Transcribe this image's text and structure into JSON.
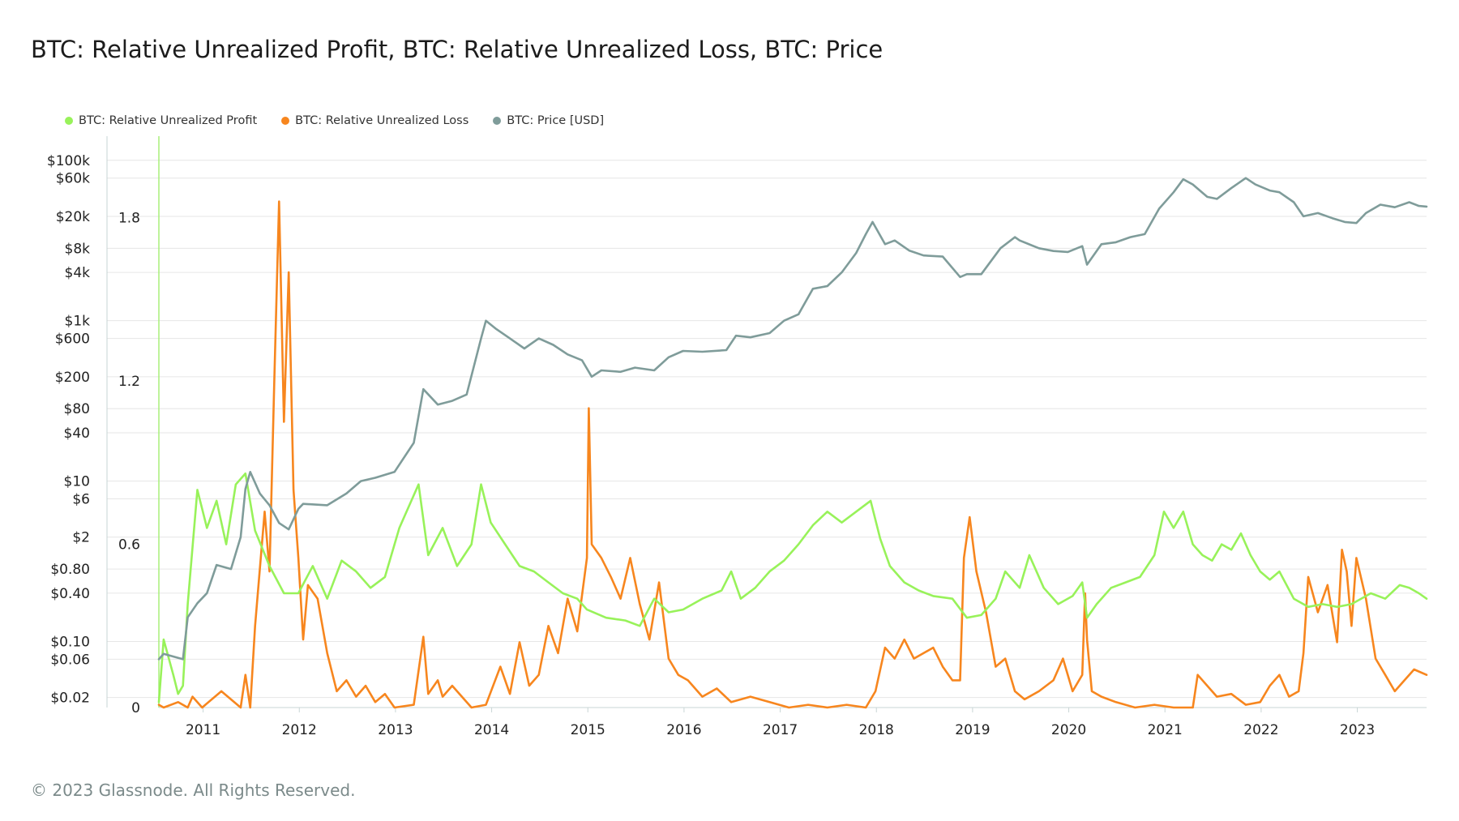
{
  "title": "BTC: Relative Unrealized Profit, BTC: Relative Unrealized Loss, BTC: Price",
  "footer": "© 2023 Glassnode. All Rights Reserved.",
  "colors": {
    "profit": "#98f25a",
    "loss": "#f7861e",
    "price": "#7f9c9a",
    "grid": "#e6e6e6",
    "axis": "#9aa"
  },
  "legend": [
    {
      "label": "BTC: Relative Unrealized Profit",
      "color": "#98f25a"
    },
    {
      "label": "BTC: Relative Unrealized Loss",
      "color": "#f7861e"
    },
    {
      "label": "BTC: Price [USD]",
      "color": "#7f9c9a"
    }
  ],
  "chart_data": {
    "type": "line",
    "title": "BTC: Relative Unrealized Profit, BTC: Relative Unrealized Loss, BTC: Price",
    "x_range": [
      2010.55,
      2023.73
    ],
    "x_ticks": [
      "2011",
      "2012",
      "2013",
      "2014",
      "2015",
      "2016",
      "2017",
      "2018",
      "2019",
      "2020",
      "2021",
      "2022",
      "2023"
    ],
    "y_left_scale": "log",
    "y_left_range": [
      0.015,
      200000
    ],
    "y_left_ticks": [
      "$0.02",
      "$0.06",
      "$0.10",
      "$0.40",
      "$0.80",
      "$2",
      "$6",
      "$10",
      "$40",
      "$80",
      "$200",
      "$600",
      "$1k",
      "$4k",
      "$8k",
      "$20k",
      "$60k",
      "$100k"
    ],
    "y_right_range": [
      0,
      2.1
    ],
    "y_right_ticks": [
      "0",
      "0.6",
      "1.2",
      "1.8"
    ],
    "series": [
      {
        "name": "BTC: Relative Unrealized Profit",
        "axis": "right",
        "color": "#98f25a",
        "x": [
          2010.55,
          2010.6,
          2010.7,
          2010.75,
          2010.8,
          2010.85,
          2010.95,
          2011.05,
          2011.15,
          2011.25,
          2011.35,
          2011.45,
          2011.55,
          2011.7,
          2011.85,
          2012.0,
          2012.15,
          2012.3,
          2012.45,
          2012.6,
          2012.75,
          2012.9,
          2013.05,
          2013.15,
          2013.25,
          2013.35,
          2013.5,
          2013.65,
          2013.8,
          2013.9,
          2014.0,
          2014.15,
          2014.3,
          2014.45,
          2014.6,
          2014.75,
          2014.9,
          2015.0,
          2015.2,
          2015.4,
          2015.55,
          2015.7,
          2015.85,
          2016.0,
          2016.2,
          2016.4,
          2016.5,
          2016.6,
          2016.75,
          2016.9,
          2017.05,
          2017.2,
          2017.35,
          2017.5,
          2017.65,
          2017.8,
          2017.95,
          2018.05,
          2018.15,
          2018.3,
          2018.45,
          2018.6,
          2018.8,
          2018.95,
          2019.1,
          2019.25,
          2019.35,
          2019.5,
          2019.6,
          2019.75,
          2019.9,
          2020.05,
          2020.15,
          2020.2,
          2020.3,
          2020.45,
          2020.6,
          2020.75,
          2020.9,
          2021.0,
          2021.1,
          2021.2,
          2021.3,
          2021.4,
          2021.5,
          2021.6,
          2021.7,
          2021.8,
          2021.9,
          2022.0,
          2022.1,
          2022.2,
          2022.35,
          2022.5,
          2022.65,
          2022.8,
          2022.95,
          2023.05,
          2023.15,
          2023.3,
          2023.45,
          2023.55,
          2023.65,
          2023.73
        ],
        "y": [
          0.02,
          0.25,
          0.12,
          0.05,
          0.08,
          0.38,
          0.8,
          0.66,
          0.76,
          0.6,
          0.82,
          0.86,
          0.65,
          0.52,
          0.42,
          0.42,
          0.52,
          0.4,
          0.54,
          0.5,
          0.44,
          0.48,
          0.66,
          0.74,
          0.82,
          0.56,
          0.66,
          0.52,
          0.6,
          0.82,
          0.68,
          0.6,
          0.52,
          0.5,
          0.46,
          0.42,
          0.4,
          0.36,
          0.33,
          0.32,
          0.3,
          0.4,
          0.35,
          0.36,
          0.4,
          0.43,
          0.5,
          0.4,
          0.44,
          0.5,
          0.54,
          0.6,
          0.67,
          0.72,
          0.68,
          0.72,
          0.76,
          0.62,
          0.52,
          0.46,
          0.43,
          0.41,
          0.4,
          0.33,
          0.34,
          0.4,
          0.5,
          0.44,
          0.56,
          0.44,
          0.38,
          0.41,
          0.46,
          0.33,
          0.38,
          0.44,
          0.46,
          0.48,
          0.56,
          0.72,
          0.66,
          0.72,
          0.6,
          0.56,
          0.54,
          0.6,
          0.58,
          0.64,
          0.56,
          0.5,
          0.47,
          0.5,
          0.4,
          0.37,
          0.38,
          0.37,
          0.38,
          0.4,
          0.42,
          0.4,
          0.45,
          0.44,
          0.42,
          0.4
        ]
      },
      {
        "name": "BTC: Relative Unrealized Loss",
        "axis": "right",
        "color": "#f7861e",
        "x": [
          2010.55,
          2010.6,
          2010.75,
          2010.85,
          2010.9,
          2011.0,
          2011.2,
          2011.4,
          2011.45,
          2011.5,
          2011.55,
          2011.65,
          2011.7,
          2011.75,
          2011.8,
          2011.85,
          2011.9,
          2011.95,
          2012.0,
          2012.05,
          2012.1,
          2012.2,
          2012.3,
          2012.4,
          2012.5,
          2012.6,
          2012.7,
          2012.8,
          2012.9,
          2013.0,
          2013.2,
          2013.3,
          2013.35,
          2013.45,
          2013.5,
          2013.6,
          2013.8,
          2013.95,
          2014.1,
          2014.2,
          2014.3,
          2014.4,
          2014.5,
          2014.6,
          2014.7,
          2014.8,
          2014.9,
          2015.0,
          2015.02,
          2015.05,
          2015.15,
          2015.25,
          2015.35,
          2015.45,
          2015.55,
          2015.65,
          2015.75,
          2015.85,
          2015.95,
          2016.05,
          2016.2,
          2016.35,
          2016.5,
          2016.7,
          2016.9,
          2017.1,
          2017.3,
          2017.5,
          2017.7,
          2017.9,
          2018.0,
          2018.1,
          2018.2,
          2018.3,
          2018.4,
          2018.5,
          2018.6,
          2018.7,
          2018.8,
          2018.88,
          2018.92,
          2018.98,
          2019.05,
          2019.15,
          2019.25,
          2019.35,
          2019.45,
          2019.55,
          2019.7,
          2019.85,
          2019.95,
          2020.05,
          2020.15,
          2020.18,
          2020.2,
          2020.25,
          2020.35,
          2020.5,
          2020.7,
          2020.9,
          2021.1,
          2021.3,
          2021.35,
          2021.45,
          2021.55,
          2021.7,
          2021.85,
          2022.0,
          2022.1,
          2022.2,
          2022.3,
          2022.4,
          2022.45,
          2022.5,
          2022.6,
          2022.7,
          2022.8,
          2022.85,
          2022.9,
          2022.95,
          2023.0,
          2023.1,
          2023.2,
          2023.3,
          2023.4,
          2023.5,
          2023.6,
          2023.73
        ],
        "y": [
          0.01,
          0.0,
          0.02,
          0.0,
          0.04,
          0.0,
          0.06,
          0.0,
          0.12,
          0.0,
          0.3,
          0.72,
          0.5,
          1.2,
          1.86,
          1.05,
          1.6,
          0.8,
          0.55,
          0.25,
          0.45,
          0.4,
          0.2,
          0.06,
          0.1,
          0.04,
          0.08,
          0.02,
          0.05,
          0.0,
          0.01,
          0.26,
          0.05,
          0.1,
          0.04,
          0.08,
          0.0,
          0.01,
          0.15,
          0.05,
          0.24,
          0.08,
          0.12,
          0.3,
          0.2,
          0.4,
          0.28,
          0.55,
          1.1,
          0.6,
          0.55,
          0.48,
          0.4,
          0.55,
          0.38,
          0.25,
          0.46,
          0.18,
          0.12,
          0.1,
          0.04,
          0.07,
          0.02,
          0.04,
          0.02,
          0.0,
          0.01,
          0.0,
          0.01,
          0.0,
          0.06,
          0.22,
          0.18,
          0.25,
          0.18,
          0.2,
          0.22,
          0.15,
          0.1,
          0.1,
          0.55,
          0.7,
          0.5,
          0.35,
          0.15,
          0.18,
          0.06,
          0.03,
          0.06,
          0.1,
          0.18,
          0.06,
          0.12,
          0.42,
          0.25,
          0.06,
          0.04,
          0.02,
          0.0,
          0.01,
          0.0,
          0.0,
          0.12,
          0.08,
          0.04,
          0.05,
          0.01,
          0.02,
          0.08,
          0.12,
          0.04,
          0.06,
          0.2,
          0.48,
          0.35,
          0.45,
          0.24,
          0.58,
          0.5,
          0.3,
          0.55,
          0.4,
          0.18,
          0.12,
          0.06,
          0.1,
          0.14,
          0.12
        ]
      },
      {
        "name": "BTC: Price [USD]",
        "axis": "left",
        "color": "#7f9c9a",
        "x": [
          2010.55,
          2010.6,
          2010.8,
          2010.85,
          2010.95,
          2011.05,
          2011.15,
          2011.3,
          2011.4,
          2011.45,
          2011.5,
          2011.6,
          2011.7,
          2011.8,
          2011.9,
          2012.0,
          2012.05,
          2012.3,
          2012.5,
          2012.65,
          2012.8,
          2013.0,
          2013.2,
          2013.3,
          2013.45,
          2013.6,
          2013.75,
          2013.9,
          2013.95,
          2014.05,
          2014.2,
          2014.35,
          2014.5,
          2014.65,
          2014.8,
          2014.95,
          2015.05,
          2015.15,
          2015.35,
          2015.5,
          2015.7,
          2015.85,
          2016.0,
          2016.2,
          2016.45,
          2016.55,
          2016.7,
          2016.9,
          2017.05,
          2017.2,
          2017.35,
          2017.5,
          2017.65,
          2017.8,
          2017.9,
          2017.97,
          2018.1,
          2018.2,
          2018.35,
          2018.5,
          2018.7,
          2018.88,
          2018.95,
          2019.1,
          2019.3,
          2019.45,
          2019.5,
          2019.7,
          2019.85,
          2020.0,
          2020.15,
          2020.2,
          2020.35,
          2020.5,
          2020.65,
          2020.8,
          2020.95,
          2021.1,
          2021.2,
          2021.3,
          2021.45,
          2021.55,
          2021.7,
          2021.85,
          2021.95,
          2022.1,
          2022.2,
          2022.35,
          2022.45,
          2022.6,
          2022.75,
          2022.88,
          2023.0,
          2023.1,
          2023.25,
          2023.4,
          2023.55,
          2023.65,
          2023.73
        ],
        "y": [
          0.06,
          0.07,
          0.06,
          0.2,
          0.3,
          0.4,
          0.9,
          0.8,
          2.0,
          8.0,
          13,
          7.0,
          5.0,
          3.0,
          2.5,
          4.5,
          5.2,
          5.0,
          7.0,
          10,
          11,
          13,
          30,
          140,
          90,
          100,
          120,
          600,
          1000,
          800,
          600,
          450,
          600,
          500,
          380,
          320,
          200,
          240,
          230,
          260,
          240,
          350,
          420,
          410,
          430,
          650,
          620,
          700,
          1000,
          1200,
          2500,
          2700,
          4000,
          7000,
          12000,
          17000,
          9000,
          10000,
          7500,
          6500,
          6300,
          3500,
          3800,
          3800,
          8000,
          11000,
          10000,
          8000,
          7400,
          7200,
          8500,
          5000,
          9000,
          9500,
          11000,
          12000,
          25000,
          40000,
          58000,
          50000,
          35000,
          33000,
          45000,
          60000,
          50000,
          42000,
          40000,
          30000,
          20000,
          22000,
          19000,
          17000,
          16500,
          22000,
          28000,
          26000,
          30000,
          27000,
          26500
        ]
      }
    ]
  }
}
